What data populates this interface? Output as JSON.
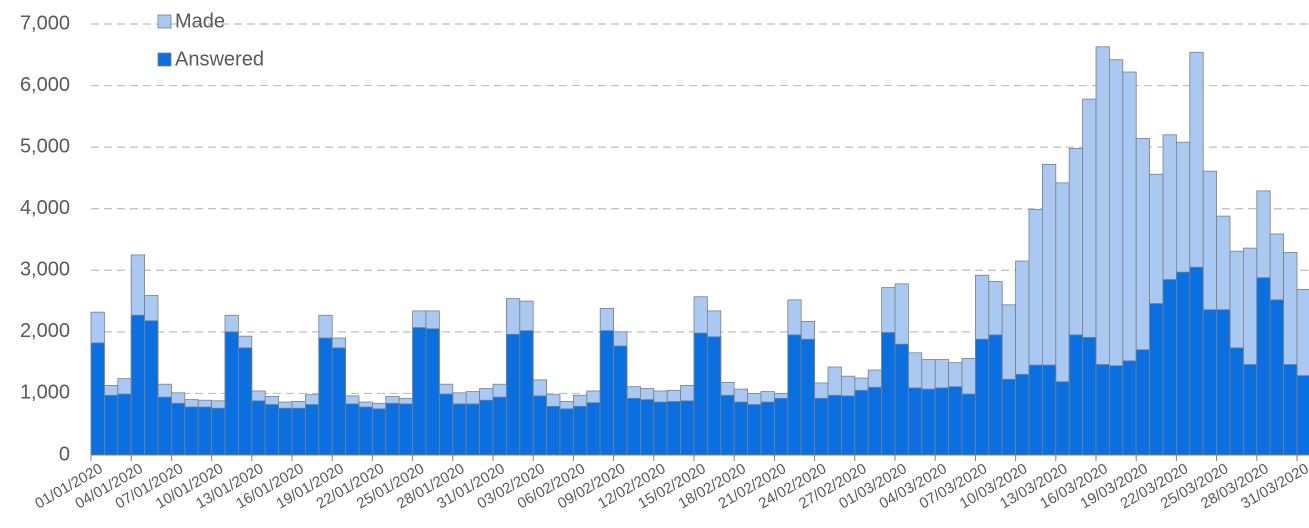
{
  "chart_data": {
    "type": "bar",
    "overlap": true,
    "categories": [
      "01/01/2020",
      null,
      null,
      "04/01/2020",
      null,
      null,
      "07/01/2020",
      null,
      null,
      "10/01/2020",
      null,
      null,
      "13/01/2020",
      null,
      null,
      "16/01/2020",
      null,
      null,
      "19/01/2020",
      null,
      null,
      "22/01/2020",
      null,
      null,
      "25/01/2020",
      null,
      null,
      "28/01/2020",
      null,
      null,
      "31/01/2020",
      null,
      null,
      "03/02/2020",
      null,
      null,
      "06/02/2020",
      null,
      null,
      "09/02/2020",
      null,
      null,
      "12/02/2020",
      null,
      null,
      "15/02/2020",
      null,
      null,
      "18/02/2020",
      null,
      null,
      "21/02/2020",
      null,
      null,
      "24/02/2020",
      null,
      null,
      "27/02/2020",
      null,
      null,
      "01/03/2020",
      null,
      null,
      "04/03/2020",
      null,
      null,
      "07/03/2020",
      null,
      null,
      "10/03/2020",
      null,
      null,
      "13/03/2020",
      null,
      null,
      "16/03/2020",
      null,
      null,
      "19/03/2020",
      null,
      null,
      "22/03/2020",
      null,
      null,
      "25/03/2020",
      null,
      null,
      "28/03/2020",
      null,
      null,
      "31/03/2020"
    ],
    "series": [
      {
        "name": "Made",
        "color": "#a9c9f3",
        "values": [
          2320,
          1130,
          1240,
          3250,
          2590,
          1150,
          1010,
          900,
          890,
          880,
          2270,
          1930,
          1040,
          950,
          860,
          870,
          980,
          2270,
          1900,
          960,
          860,
          840,
          950,
          920,
          2340,
          2340,
          1150,
          1010,
          1030,
          1080,
          1150,
          2540,
          2500,
          1220,
          980,
          870,
          970,
          1040,
          2380,
          2000,
          1110,
          1080,
          1040,
          1050,
          1130,
          2570,
          2340,
          1180,
          1070,
          1000,
          1030,
          1000,
          2520,
          2170,
          1170,
          1430,
          1280,
          1250,
          1380,
          2720,
          2780,
          1660,
          1550,
          1550,
          1500,
          1570,
          2920,
          2820,
          2440,
          3150,
          3990,
          4720,
          4420,
          4980,
          5780,
          6630,
          6420,
          6220,
          5140,
          4560,
          5200,
          5080,
          6540,
          4610,
          3880,
          3310,
          3360,
          4290,
          3590,
          3290,
          2690
        ]
      },
      {
        "name": "Answered",
        "color": "#0a6fe0",
        "values": [
          1820,
          970,
          990,
          2270,
          2180,
          940,
          840,
          780,
          780,
          760,
          2000,
          1740,
          880,
          820,
          760,
          760,
          820,
          1900,
          1740,
          830,
          780,
          750,
          840,
          830,
          2070,
          2050,
          990,
          830,
          830,
          890,
          940,
          1960,
          2020,
          960,
          790,
          750,
          790,
          850,
          2020,
          1770,
          920,
          900,
          860,
          870,
          880,
          1980,
          1920,
          970,
          860,
          820,
          860,
          920,
          1950,
          1880,
          920,
          970,
          960,
          1050,
          1100,
          1990,
          1800,
          1090,
          1070,
          1090,
          1110,
          990,
          1880,
          1950,
          1230,
          1310,
          1460,
          1460,
          1190,
          1950,
          1910,
          1470,
          1450,
          1530,
          1710,
          2460,
          2850,
          2970,
          3050,
          2360,
          2360,
          1740,
          1470,
          2880,
          2520,
          1470,
          1290
        ]
      }
    ],
    "ylim": [
      0,
      7000
    ],
    "yticks": [
      0,
      {
        "value": 1000,
        "label": "1,000"
      },
      {
        "value": 2000,
        "label": "2,000"
      },
      {
        "value": 3000,
        "label": "3,000"
      },
      {
        "value": 4000,
        "label": "4,000"
      },
      {
        "value": 5000,
        "label": "5,000"
      },
      {
        "value": 6000,
        "label": "6,000"
      },
      {
        "value": 7000,
        "label": "7,000"
      }
    ],
    "grid": true,
    "legend": "top-left"
  }
}
